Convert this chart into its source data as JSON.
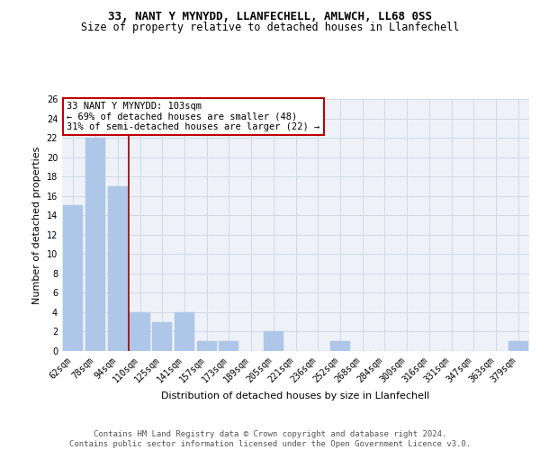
{
  "title1": "33, NANT Y MYNYDD, LLANFECHELL, AMLWCH, LL68 0SS",
  "title2": "Size of property relative to detached houses in Llanfechell",
  "xlabel": "Distribution of detached houses by size in Llanfechell",
  "ylabel": "Number of detached properties",
  "categories": [
    "62sqm",
    "78sqm",
    "94sqm",
    "110sqm",
    "125sqm",
    "141sqm",
    "157sqm",
    "173sqm",
    "189sqm",
    "205sqm",
    "221sqm",
    "236sqm",
    "252sqm",
    "268sqm",
    "284sqm",
    "300sqm",
    "316sqm",
    "331sqm",
    "347sqm",
    "363sqm",
    "379sqm"
  ],
  "values": [
    15,
    22,
    17,
    4,
    3,
    4,
    1,
    1,
    0,
    2,
    0,
    0,
    1,
    0,
    0,
    0,
    0,
    0,
    0,
    0,
    1
  ],
  "bar_color": "#aec6e8",
  "bar_edge_color": "#aec6e8",
  "vline_x_index": 2,
  "vline_color": "#8b0000",
  "annotation_text": "33 NANT Y MYNYDD: 103sqm\n← 69% of detached houses are smaller (48)\n31% of semi-detached houses are larger (22) →",
  "annotation_box_color": "#ffffff",
  "annotation_box_edge_color": "#c00000",
  "ylim": [
    0,
    26
  ],
  "yticks": [
    0,
    2,
    4,
    6,
    8,
    10,
    12,
    14,
    16,
    18,
    20,
    22,
    24,
    26
  ],
  "grid_color": "#d0d8e8",
  "background_color": "#eef2f8",
  "footer_text": "Contains HM Land Registry data © Crown copyright and database right 2024.\nContains public sector information licensed under the Open Government Licence v3.0.",
  "title1_fontsize": 9,
  "title2_fontsize": 8.5,
  "xlabel_fontsize": 8,
  "ylabel_fontsize": 8,
  "tick_fontsize": 7,
  "annotation_fontsize": 7.5,
  "footer_fontsize": 6.5
}
